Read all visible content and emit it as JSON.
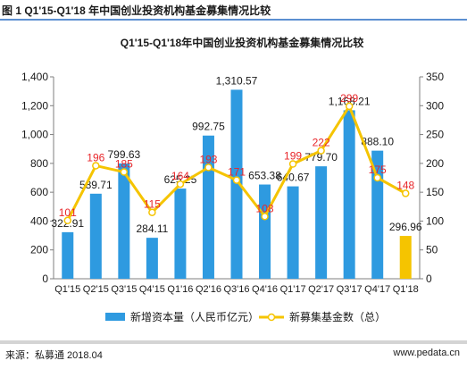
{
  "figure_title": "图 1 Q1'15-Q1'18 年中国创业投资机构基金募集情况比较",
  "chart_data": {
    "type": "bar",
    "title": "Q1'15-Q1'18年中国创业投资机构基金募集情况比较",
    "categories": [
      "Q1'15",
      "Q2'15",
      "Q3'15",
      "Q4'15",
      "Q1'16",
      "Q2'16",
      "Q3'16",
      "Q4'16",
      "Q1'17",
      "Q2'17",
      "Q3'17",
      "Q4'17",
      "Q1'18"
    ],
    "series": [
      {
        "name": "新增资本量（人民币亿元）",
        "type": "bar",
        "axis": "left",
        "color": "#2e9ae0",
        "highlight_color": "#f5c400",
        "highlight_index": 12,
        "values": [
          322.91,
          589.71,
          799.63,
          284.11,
          625.25,
          992.75,
          1310.57,
          653.38,
          640.67,
          779.7,
          1168.21,
          888.1,
          296.96
        ],
        "labels": [
          "322.91",
          "589.71",
          "799.63",
          "284.11",
          "625.25",
          "992.75",
          "1,310.57",
          "653.38",
          "640.67",
          "779.70",
          "1,168.21",
          "888.10",
          "296.96"
        ]
      },
      {
        "name": "新募集基金数（总）",
        "type": "line",
        "axis": "right",
        "color": "#f5c400",
        "marker_color": "#ffffff",
        "label_color": "#e8262a",
        "values": [
          101,
          196,
          185,
          115,
          164,
          193,
          171,
          108,
          199,
          222,
          299,
          175,
          148
        ]
      }
    ],
    "ylim_left": [
      0,
      1400
    ],
    "yticks_left": [
      "0",
      "200",
      "400",
      "600",
      "800",
      "1,000",
      "1,200",
      "1,400"
    ],
    "ylim_right": [
      0,
      350
    ],
    "yticks_right": [
      "0",
      "50",
      "100",
      "150",
      "200",
      "250",
      "300",
      "350"
    ],
    "legend_position": "bottom",
    "grid": false
  },
  "footer": {
    "source": "来源：私募通 2018.04",
    "site": "www.pedata.cn"
  }
}
